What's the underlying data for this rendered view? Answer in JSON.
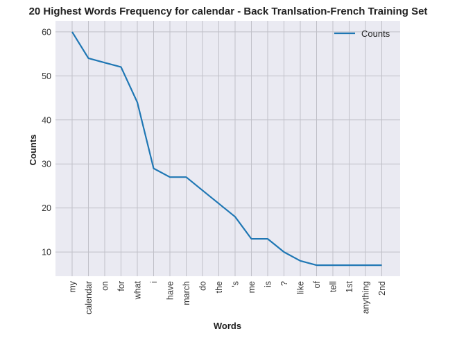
{
  "chart_data": {
    "type": "line",
    "title": "20 Highest Words Frequency for calendar - Back Tranlsation-French Training Set",
    "xlabel": "Words",
    "ylabel": "Counts",
    "categories": [
      "my",
      "calendar",
      "on",
      "for",
      "what",
      "i",
      "have",
      "march",
      "do",
      "the",
      "'s",
      "me",
      "is",
      "?",
      "like",
      "of",
      "tell",
      "1st",
      "anything",
      "2nd"
    ],
    "series": [
      {
        "name": "Counts",
        "values": [
          60,
          54,
          53,
          52,
          44,
          29,
          27,
          27,
          24,
          21,
          18,
          13,
          13,
          10,
          8,
          7,
          7,
          7,
          7,
          7
        ]
      }
    ],
    "ylim": [
      4.5,
      62.5
    ],
    "yticks": [
      10,
      20,
      30,
      40,
      50,
      60
    ],
    "grid": true,
    "legend_position": "top-right",
    "colors": {
      "line": "#1f77b4",
      "plot_bg": "#eaeaf2",
      "grid": "#c0c0c8"
    }
  }
}
